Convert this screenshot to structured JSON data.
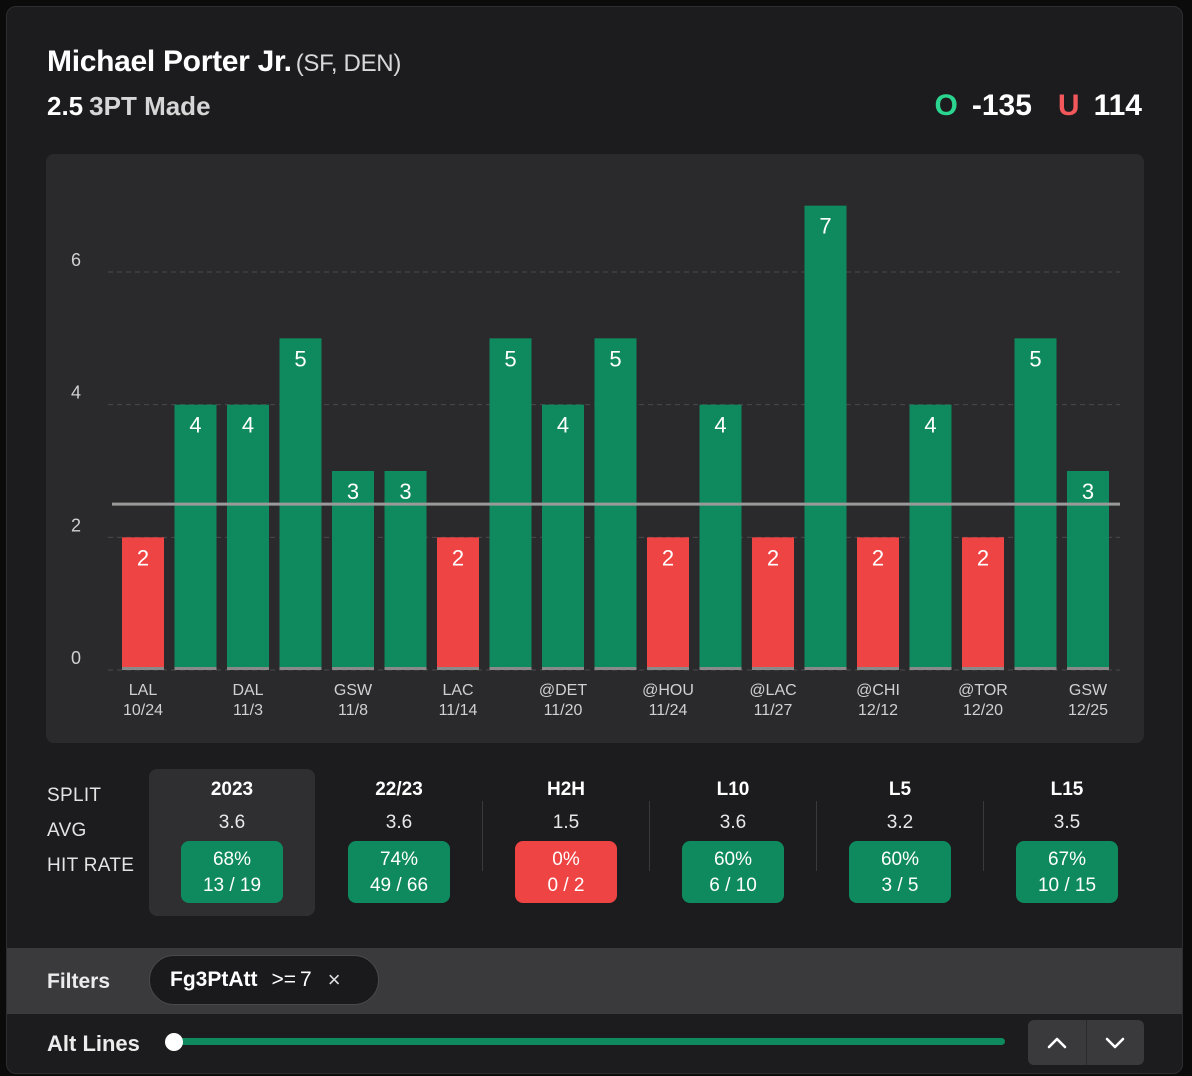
{
  "header": {
    "player_name": "Michael Porter Jr.",
    "player_team": "(SF, DEN)",
    "prop_line": "2.5",
    "prop_stat": "3PT Made",
    "over_label": "O",
    "over_odds": "-135",
    "under_label": "U",
    "under_odds": "114"
  },
  "colors": {
    "over_green": "#2bd48f",
    "under_red": "#f2575c",
    "bar_hit": "#0f8a5e",
    "bar_miss": "#ef4444",
    "line": "#9a9a9a"
  },
  "chart_data": {
    "type": "bar",
    "title": "",
    "xlabel": "",
    "ylabel": "",
    "ylim": [
      0,
      7.8
    ],
    "yticks": [
      0,
      2,
      4,
      6
    ],
    "threshold": 2.5,
    "grid": true,
    "values": [
      2,
      4,
      4,
      5,
      3,
      3,
      2,
      5,
      4,
      5,
      2,
      4,
      2,
      7,
      2,
      4,
      2,
      5,
      3
    ],
    "tick_labels": [
      {
        "index": 0,
        "opponent": "LAL",
        "date": "10/24"
      },
      {
        "index": 2,
        "opponent": "DAL",
        "date": "11/3"
      },
      {
        "index": 4,
        "opponent": "GSW",
        "date": "11/8"
      },
      {
        "index": 6,
        "opponent": "LAC",
        "date": "11/14"
      },
      {
        "index": 8,
        "opponent": "@DET",
        "date": "11/20"
      },
      {
        "index": 10,
        "opponent": "@HOU",
        "date": "11/24"
      },
      {
        "index": 12,
        "opponent": "@LAC",
        "date": "11/27"
      },
      {
        "index": 14,
        "opponent": "@CHI",
        "date": "12/12"
      },
      {
        "index": 16,
        "opponent": "@TOR",
        "date": "12/20"
      },
      {
        "index": 18,
        "opponent": "GSW",
        "date": "12/25"
      }
    ]
  },
  "splits": {
    "row_labels": {
      "split": "SPLIT",
      "avg": "AVG",
      "hit_rate": "HIT RATE"
    },
    "columns": [
      {
        "name": "2023",
        "avg": "3.6",
        "pct": "68%",
        "frac": "13 / 19",
        "status": "hit",
        "selected": true
      },
      {
        "name": "22/23",
        "avg": "3.6",
        "pct": "74%",
        "frac": "49 / 66",
        "status": "hit",
        "selected": false
      },
      {
        "name": "H2H",
        "avg": "1.5",
        "pct": "0%",
        "frac": "0 / 2",
        "status": "miss",
        "selected": false
      },
      {
        "name": "L10",
        "avg": "3.6",
        "pct": "60%",
        "frac": "6 / 10",
        "status": "hit",
        "selected": false
      },
      {
        "name": "L5",
        "avg": "3.2",
        "pct": "60%",
        "frac": "3 / 5",
        "status": "hit",
        "selected": false
      },
      {
        "name": "L15",
        "avg": "3.5",
        "pct": "67%",
        "frac": "10 / 15",
        "status": "hit",
        "selected": false
      }
    ]
  },
  "filters": {
    "label": "Filters",
    "chip": {
      "name": "Fg3PtAtt",
      "operator": ">=",
      "value": "7",
      "remove": "×"
    }
  },
  "alt_lines": {
    "label": "Alt Lines",
    "slider_position": 0.0
  },
  "icons": {
    "up": "chevron-up-icon",
    "down": "chevron-down-icon",
    "close": "close-icon"
  }
}
